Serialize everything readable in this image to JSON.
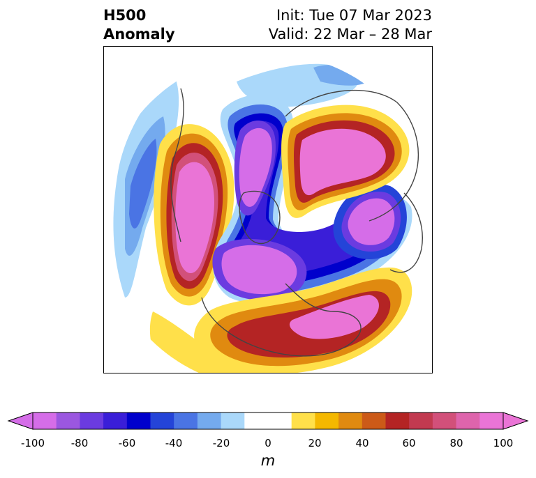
{
  "header": {
    "field": "H500",
    "type": "Anomaly",
    "init": "Init: Tue 07 Mar 2023",
    "valid": "Valid: 22 Mar – 28 Mar"
  },
  "colorbar": {
    "unit": "m",
    "ticks": [
      "-100",
      "-80",
      "-60",
      "-40",
      "-20",
      "0",
      "20",
      "40",
      "60",
      "80",
      "100"
    ],
    "levels": [
      {
        "range": "-100 to -90",
        "color": "#d56de8"
      },
      {
        "range": "-90 to -80",
        "color": "#9b57e0"
      },
      {
        "range": "-80 to -70",
        "color": "#6b3be0"
      },
      {
        "range": "-70 to -60",
        "color": "#3a1ed8"
      },
      {
        "range": "-60 to -50",
        "color": "#0000cc"
      },
      {
        "range": "-50 to -40",
        "color": "#2444d8"
      },
      {
        "range": "-40 to -30",
        "color": "#4a74e4"
      },
      {
        "range": "-30 to -20",
        "color": "#74aaee"
      },
      {
        "range": "-20 to -10",
        "color": "#aad8fa"
      },
      {
        "range": "-10 to 0",
        "color": "#ffffff"
      },
      {
        "range": "0 to 10",
        "color": "#ffffff"
      },
      {
        "range": "10 to 20",
        "color": "#ffe04a"
      },
      {
        "range": "20 to 30",
        "color": "#f4b800"
      },
      {
        "range": "30 to 40",
        "color": "#e08a10"
      },
      {
        "range": "40 to 50",
        "color": "#cc5a18"
      },
      {
        "range": "50 to 60",
        "color": "#b42424"
      },
      {
        "range": "60 to 70",
        "color": "#c23a50"
      },
      {
        "range": "70 to 80",
        "color": "#d2507a"
      },
      {
        "range": "80 to 90",
        "color": "#de64ac"
      },
      {
        "range": "90 to 100",
        "color": "#ea74d6"
      }
    ],
    "under_color": "#d56de8",
    "over_color": "#ea74d6"
  }
}
